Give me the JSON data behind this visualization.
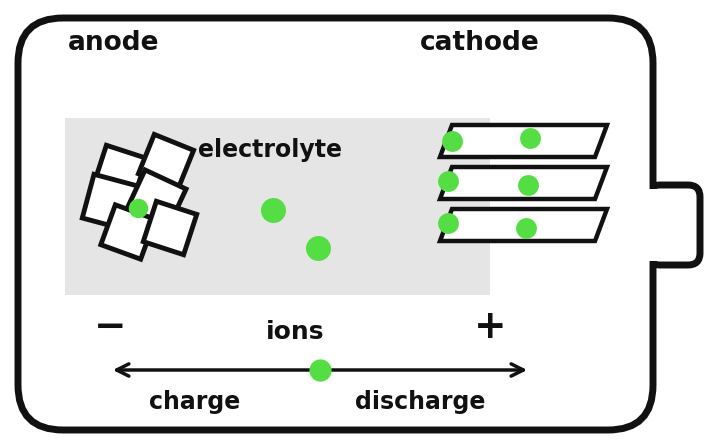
{
  "bg_color": "#ffffff",
  "battery_body_color": "#ffffff",
  "outline_color": "#111111",
  "electrolyte_color": "#e5e5e5",
  "ion_color": "#55dd44",
  "text_color": "#111111",
  "labels": {
    "anode": "anode",
    "cathode": "cathode",
    "electrolyte": "electrolyte",
    "minus": "−",
    "plus": "+",
    "ions": "ions",
    "charge": "charge",
    "discharge": "discharge"
  },
  "figsize": [
    7.09,
    4.45
  ],
  "dpi": 100
}
